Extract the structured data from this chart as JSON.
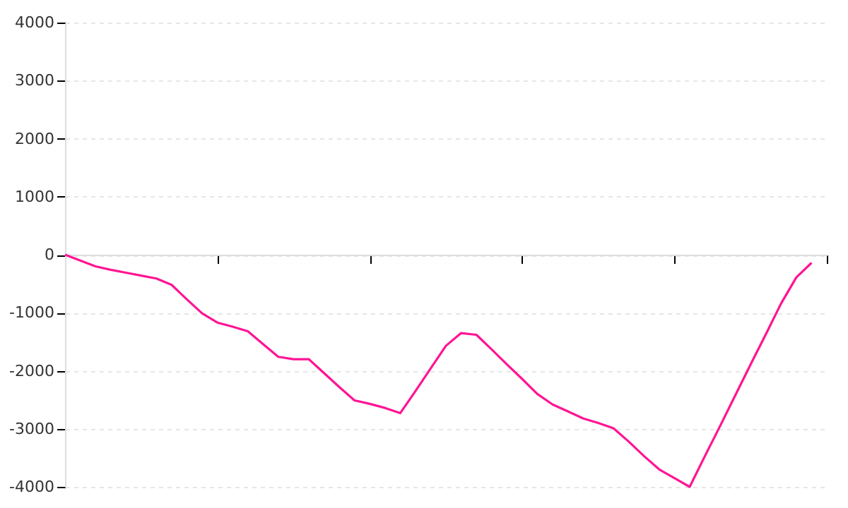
{
  "chart_data": {
    "type": "line",
    "categories": [
      null,
      null,
      null,
      null,
      null,
      null,
      null,
      null,
      null,
      null,
      null,
      null,
      null,
      null,
      null,
      null,
      null,
      null,
      null,
      null,
      null,
      null,
      null,
      null,
      null,
      null,
      null,
      null,
      null,
      null,
      null,
      null,
      null,
      null,
      null,
      null,
      null,
      null,
      null,
      null,
      null,
      null,
      null,
      null,
      null,
      null,
      null,
      null,
      null,
      null,
      null
    ],
    "series": [
      {
        "color": "#ff1493",
        "values": [
          0,
          -100,
          -200,
          -260,
          -310,
          -360,
          -410,
          -520,
          -770,
          -1010,
          -1170,
          -1240,
          -1320,
          -1540,
          -1760,
          -1800,
          -1800,
          -2040,
          -2280,
          -2510,
          -2570,
          -2640,
          -2730,
          -2350,
          -1960,
          -1570,
          -1350,
          -1380,
          -1630,
          -1890,
          -2140,
          -2400,
          -2580,
          -2700,
          -2820,
          -2900,
          -2990,
          -3220,
          -3470,
          -3700,
          -3850,
          -4000,
          -3470,
          -2950,
          -2420,
          -1890,
          -1370,
          -840,
          -390,
          -140,
          null
        ]
      }
    ],
    "ylim": [
      -4000,
      4000
    ],
    "yticks": [
      -4000,
      -3000,
      -2000,
      -1000,
      0,
      1000,
      2000,
      3000,
      4000
    ],
    "grid": "y",
    "marker": "none",
    "line_style": "solid"
  }
}
